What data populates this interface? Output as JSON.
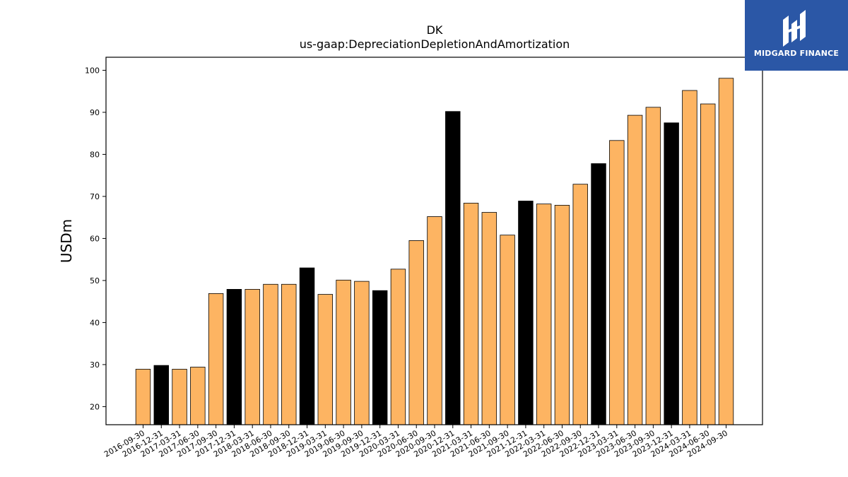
{
  "logo": {
    "text": "MIDGARD FINANCE",
    "icon": "midgard-logo-icon"
  },
  "chart_data": {
    "type": "bar",
    "title": "DK",
    "subtitle": "us-gaap:DepreciationDepletionAndAmortization",
    "xlabel": "",
    "ylabel": "USDm",
    "ylim": [
      15.7,
      103.1
    ],
    "yticks": [
      20,
      30,
      40,
      50,
      60,
      70,
      80,
      90,
      100
    ],
    "grid": false,
    "colors": {
      "quarter": "#fdb462",
      "year_end": "#000000",
      "edge": "#000000"
    },
    "categories": [
      "2016-09-30",
      "2016-12-31",
      "2017-03-31",
      "2017-06-30",
      "2017-09-30",
      "2017-12-31",
      "2018-03-31",
      "2018-06-30",
      "2018-09-30",
      "2018-12-31",
      "2019-03-31",
      "2019-06-30",
      "2019-09-30",
      "2019-12-31",
      "2020-03-31",
      "2020-06-30",
      "2020-09-30",
      "2020-12-31",
      "2021-03-31",
      "2021-06-30",
      "2021-09-30",
      "2021-12-31",
      "2022-03-31",
      "2022-06-30",
      "2022-09-30",
      "2022-12-31",
      "2023-03-31",
      "2023-06-30",
      "2023-09-30",
      "2023-12-31",
      "2024-03-31",
      "2024-06-30",
      "2024-09-30"
    ],
    "values": [
      28.9,
      29.8,
      28.9,
      29.4,
      46.9,
      47.9,
      47.9,
      49.1,
      49.1,
      53.0,
      46.7,
      50.1,
      49.8,
      47.6,
      52.7,
      59.5,
      65.2,
      90.2,
      68.4,
      66.2,
      60.8,
      68.9,
      68.2,
      67.9,
      72.9,
      77.8,
      83.3,
      89.3,
      91.2,
      87.5,
      95.2,
      92.0,
      98.1
    ]
  }
}
